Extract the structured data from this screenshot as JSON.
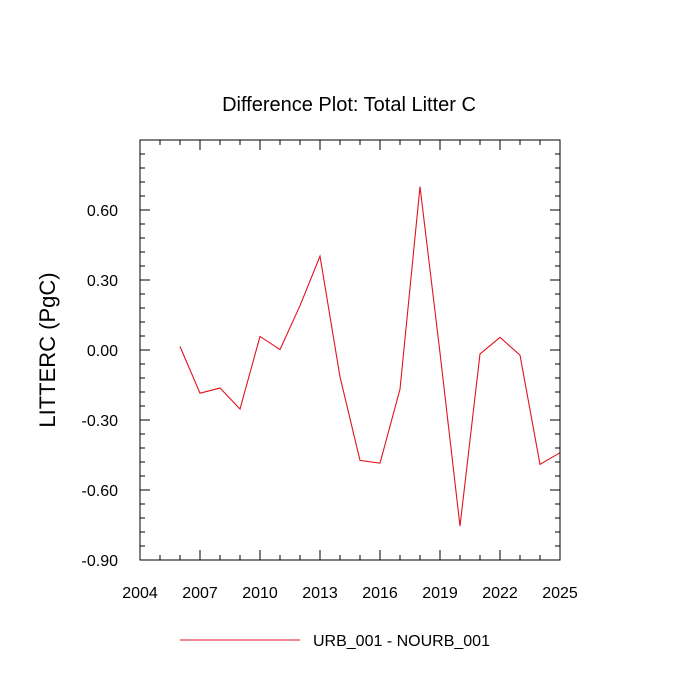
{
  "chart_data": {
    "type": "line",
    "title": "Difference Plot: Total Litter C",
    "xlabel": "",
    "ylabel": "LITTERC  (PgC)",
    "xlim": [
      2004,
      2025
    ],
    "ylim": [
      -0.9,
      0.9
    ],
    "x_ticks": [
      2004,
      2007,
      2010,
      2013,
      2016,
      2019,
      2022,
      2025
    ],
    "y_ticks": [
      -0.9,
      -0.6,
      -0.3,
      0.0,
      0.3,
      0.6
    ],
    "y_tick_labels": [
      "-0.90",
      "-0.60",
      "-0.30",
      "0.00",
      "0.30",
      "0.60"
    ],
    "grid": false,
    "legend_position": "bottom-center",
    "x": [
      2006,
      2007,
      2008,
      2009,
      2010,
      2011,
      2012,
      2013,
      2014,
      2015,
      2016,
      2017,
      2018,
      2019,
      2020,
      2021,
      2022,
      2023,
      2024,
      2025
    ],
    "series": [
      {
        "name": "URB_001 - NOURB_001",
        "color": "#e0141e",
        "values": [
          0.015,
          -0.185,
          -0.163,
          -0.253,
          0.058,
          0.002,
          0.19,
          0.402,
          -0.115,
          -0.473,
          -0.485,
          -0.168,
          0.7,
          -0.012,
          -0.755,
          -0.017,
          0.054,
          -0.022,
          -0.49,
          -0.44
        ]
      }
    ]
  }
}
